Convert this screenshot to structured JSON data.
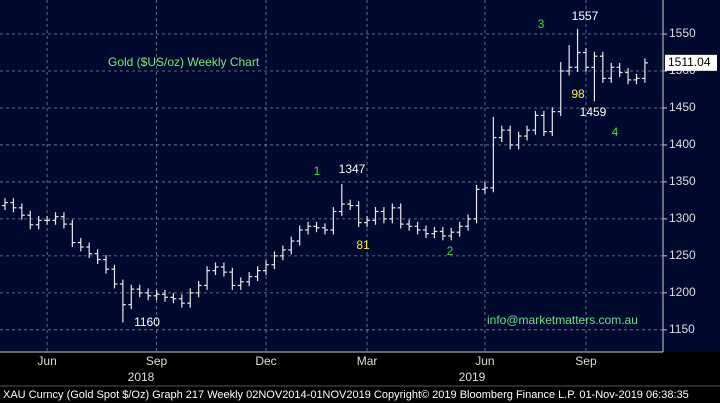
{
  "chart_data": {
    "type": "ohlc",
    "title": "Gold ($US/oz) Weekly Chart",
    "color": "#e8e8e8",
    "grid": true,
    "ylim": [
      1120,
      1596
    ],
    "yticks": [
      1150,
      1200,
      1250,
      1300,
      1350,
      1400,
      1450,
      1500,
      1550
    ],
    "categories": [
      null,
      null,
      null,
      null,
      null,
      "Jun",
      null,
      null,
      null,
      null,
      null,
      null,
      null,
      null,
      null,
      null,
      null,
      null,
      "Sep",
      null,
      null,
      null,
      null,
      null,
      null,
      null,
      null,
      null,
      null,
      null,
      null,
      "Dec",
      null,
      null,
      null,
      null,
      null,
      null,
      null,
      null,
      null,
      null,
      null,
      "Mar",
      null,
      null,
      null,
      null,
      null,
      null,
      null,
      null,
      null,
      null,
      null,
      null,
      null,
      "Jun",
      null,
      null,
      null,
      null,
      null,
      null,
      null,
      null,
      null,
      null,
      null,
      "Sep",
      null,
      null,
      null,
      null,
      null,
      null,
      null
    ],
    "year_labels": [
      "2018",
      "2019"
    ],
    "open": [
      1318,
      1322,
      1315,
      1305,
      1292,
      1298,
      1298,
      1303,
      1293,
      1268,
      1262,
      1253,
      1245,
      1232,
      1212,
      1184,
      1205,
      1200,
      1196,
      1198,
      1194,
      1192,
      1186,
      1200,
      1210,
      1230,
      1235,
      1228,
      1210,
      1215,
      1222,
      1230,
      1238,
      1250,
      1258,
      1270,
      1285,
      1290,
      1288,
      1285,
      1310,
      1320,
      1318,
      1295,
      1298,
      1310,
      1300,
      1315,
      1293,
      1290,
      1285,
      1280,
      1283,
      1277,
      1282,
      1290,
      1300,
      1340,
      1342,
      1410,
      1420,
      1400,
      1412,
      1420,
      1440,
      1418,
      1445,
      1500,
      1505,
      1525,
      1505,
      1520,
      1490,
      1505,
      1498,
      1488,
      1490
    ],
    "high": [
      1328,
      1328,
      1321,
      1311,
      1304,
      1304,
      1309,
      1309,
      1299,
      1274,
      1268,
      1259,
      1251,
      1238,
      1218,
      1211,
      1211,
      1206,
      1204,
      1204,
      1200,
      1198,
      1206,
      1216,
      1236,
      1241,
      1241,
      1234,
      1221,
      1228,
      1236,
      1244,
      1256,
      1264,
      1276,
      1291,
      1296,
      1296,
      1294,
      1316,
      1347,
      1326,
      1324,
      1304,
      1316,
      1316,
      1321,
      1321,
      1299,
      1296,
      1291,
      1289,
      1289,
      1288,
      1296,
      1306,
      1346,
      1350,
      1438,
      1426,
      1426,
      1418,
      1426,
      1446,
      1446,
      1451,
      1512,
      1535,
      1557,
      1531,
      1526,
      1526,
      1511,
      1511,
      1504,
      1496,
      1517
    ],
    "low": [
      1312,
      1309,
      1299,
      1286,
      1286,
      1292,
      1292,
      1287,
      1262,
      1256,
      1247,
      1239,
      1226,
      1206,
      1160,
      1178,
      1194,
      1190,
      1190,
      1188,
      1186,
      1180,
      1180,
      1194,
      1204,
      1224,
      1222,
      1204,
      1204,
      1209,
      1216,
      1224,
      1232,
      1244,
      1252,
      1264,
      1279,
      1282,
      1279,
      1279,
      1304,
      1312,
      1289,
      1289,
      1292,
      1294,
      1294,
      1287,
      1284,
      1279,
      1274,
      1274,
      1271,
      1271,
      1276,
      1284,
      1294,
      1334,
      1336,
      1404,
      1394,
      1394,
      1406,
      1414,
      1412,
      1412,
      1439,
      1494,
      1499,
      1499,
      1459,
      1484,
      1484,
      1492,
      1482,
      1482,
      1484
    ],
    "close": [
      1322,
      1315,
      1305,
      1292,
      1298,
      1298,
      1303,
      1293,
      1268,
      1262,
      1253,
      1245,
      1232,
      1212,
      1184,
      1205,
      1200,
      1196,
      1198,
      1194,
      1192,
      1186,
      1200,
      1210,
      1230,
      1235,
      1228,
      1210,
      1215,
      1222,
      1230,
      1238,
      1250,
      1258,
      1270,
      1285,
      1290,
      1288,
      1285,
      1310,
      1320,
      1318,
      1295,
      1298,
      1310,
      1300,
      1315,
      1293,
      1290,
      1285,
      1280,
      1283,
      1277,
      1282,
      1290,
      1300,
      1340,
      1342,
      1410,
      1420,
      1400,
      1412,
      1420,
      1440,
      1418,
      1445,
      1500,
      1505,
      1525,
      1505,
      1520,
      1490,
      1505,
      1498,
      1488,
      1490,
      1511.04
    ],
    "last_price": {
      "value": 1511.04,
      "label": "1511.04"
    },
    "annotations": [
      "1557",
      "3",
      "98",
      "1459",
      "4",
      "1347",
      "1",
      "81",
      "2",
      "1160"
    ],
    "contact": "info@marketmatters.com.au",
    "footer": "XAU Curncy (Gold Spot  $/Oz) Graph 217  Weekly 02NOV2014-01NOV2019 Copyright© 2019 Bloomberg Finance L.P.  01-Nov-2019 06:38:35"
  }
}
